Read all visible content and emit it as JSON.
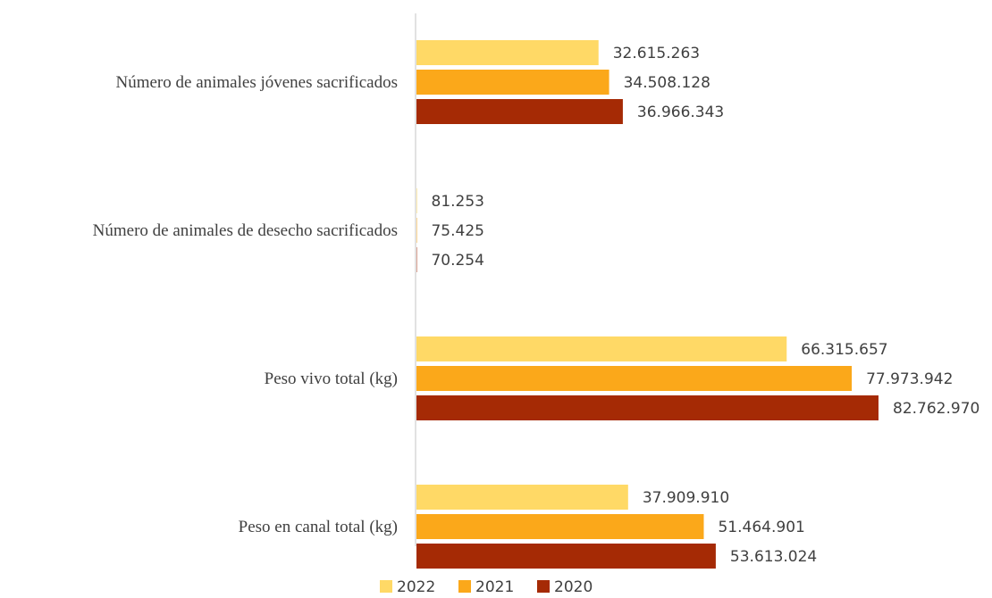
{
  "chart_data": {
    "type": "bar",
    "orientation": "horizontal",
    "title": "",
    "xlabel": "",
    "ylabel": "",
    "grid": false,
    "legend_position": "bottom",
    "xlim": [
      0,
      82762970
    ],
    "categories": [
      "Número de animales jóvenes sacrificados",
      "Número de animales de desecho sacrificados",
      "Peso vivo total (kg)",
      "Peso en canal total (kg)"
    ],
    "series": [
      {
        "name": "2022",
        "color": "#FFD966",
        "values": [
          32615263,
          81253,
          66315657,
          37909910
        ],
        "labels": [
          "32.615.263",
          "81.253",
          "66.315.657",
          "37.909.910"
        ]
      },
      {
        "name": "2021",
        "color": "#FBA81A",
        "values": [
          34508128,
          75425,
          77973942,
          51464901
        ],
        "labels": [
          "34.508.128",
          "75.425",
          "77.973.942",
          "51.464.901"
        ]
      },
      {
        "name": "2020",
        "color": "#A52A05",
        "values": [
          36966343,
          70254,
          82762970,
          53613024
        ],
        "labels": [
          "36.966.343",
          "70.254",
          "82.762.970",
          "53.613.024"
        ]
      }
    ]
  }
}
